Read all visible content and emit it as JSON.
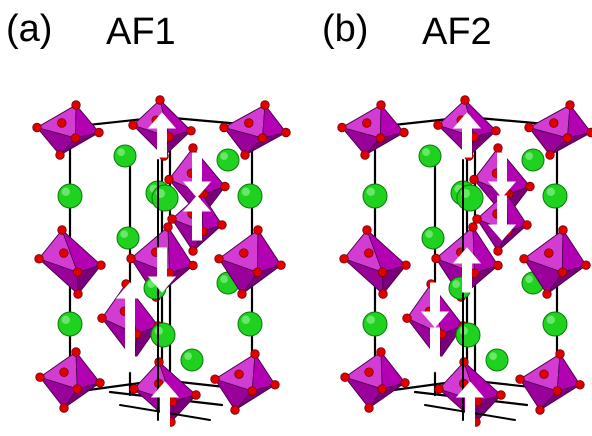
{
  "panels": [
    {
      "letter": "(a)",
      "title": "AF1",
      "moments": [
        "up",
        "down",
        "up",
        "down",
        "up",
        "down",
        "up"
      ]
    },
    {
      "letter": "(b)",
      "title": "AF2",
      "moments": [
        "up",
        "down",
        "down",
        "up",
        "down",
        "down",
        "up"
      ]
    }
  ],
  "colors": {
    "octahedron_face": "#b200b2",
    "octahedron_dark": "#7a007a",
    "octahedron_light": "#d23cd2",
    "oxygen": "#e00000",
    "cation": "#1fd21f",
    "bond": "#000000",
    "arrow": "#ffffff",
    "background": "#ffffff"
  }
}
